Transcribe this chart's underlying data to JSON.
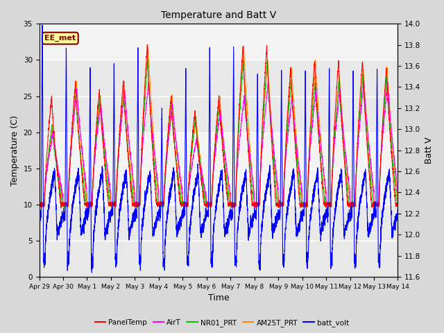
{
  "title": "Temperature and Batt V",
  "xlabel": "Time",
  "ylabel_left": "Temperature (C)",
  "ylabel_right": "Batt V",
  "annotation": "EE_met",
  "x_tick_labels": [
    "Apr 29",
    "Apr 30",
    "May 1",
    "May 2",
    "May 3",
    "May 4",
    "May 5",
    "May 6",
    "May 7",
    "May 8",
    "May 9",
    "May 10",
    "May 11",
    "May 12",
    "May 13",
    "May 14"
  ],
  "ylim_left": [
    0,
    35
  ],
  "ylim_right": [
    11.6,
    14.0
  ],
  "yticks_left": [
    0,
    5,
    10,
    15,
    20,
    25,
    30,
    35
  ],
  "yticks_right": [
    11.6,
    11.8,
    12.0,
    12.2,
    12.4,
    12.6,
    12.8,
    13.0,
    13.2,
    13.4,
    13.6,
    13.8,
    14.0
  ],
  "legend_entries": [
    "PanelTemp",
    "AirT",
    "NR01_PRT",
    "AM25T_PRT",
    "batt_volt"
  ],
  "line_colors": [
    "#ff0000",
    "#ff00ff",
    "#00cc00",
    "#ff8800",
    "#0000ff"
  ],
  "background_color": "#d8d8d8",
  "plot_bg_color": "#e8e8e8",
  "num_days": 15
}
